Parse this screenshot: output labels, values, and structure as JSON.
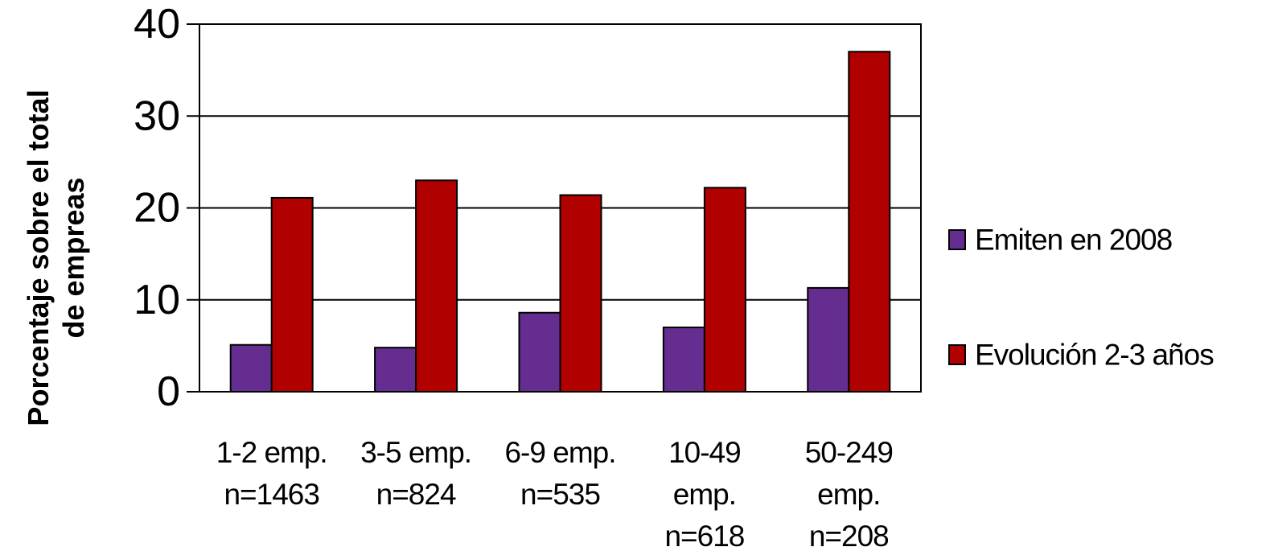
{
  "chart_data": {
    "type": "bar",
    "title": "",
    "ylabel": [
      "Porcentaje sobre el total",
      "de empreas"
    ],
    "xlabel": "",
    "ylim": [
      0,
      40
    ],
    "yticks": [
      0,
      10,
      20,
      30,
      40
    ],
    "grid": "horizontal",
    "legend_position": "right",
    "categories": [
      [
        "1-2 emp.",
        "n=1463"
      ],
      [
        "3-5 emp.",
        "n=824"
      ],
      [
        "6-9 emp.",
        "n=535"
      ],
      [
        "10-49",
        "emp.",
        "n=618"
      ],
      [
        "50-249",
        "emp.",
        "n=208"
      ]
    ],
    "series": [
      {
        "name": "Emiten en 2008",
        "color": "#662D91",
        "values": [
          5.1,
          4.8,
          8.6,
          7.0,
          11.3
        ]
      },
      {
        "name": "Evolución 2-3 años",
        "color": "#B00000",
        "values": [
          21.1,
          23.0,
          21.4,
          22.2,
          37.0
        ]
      }
    ]
  }
}
